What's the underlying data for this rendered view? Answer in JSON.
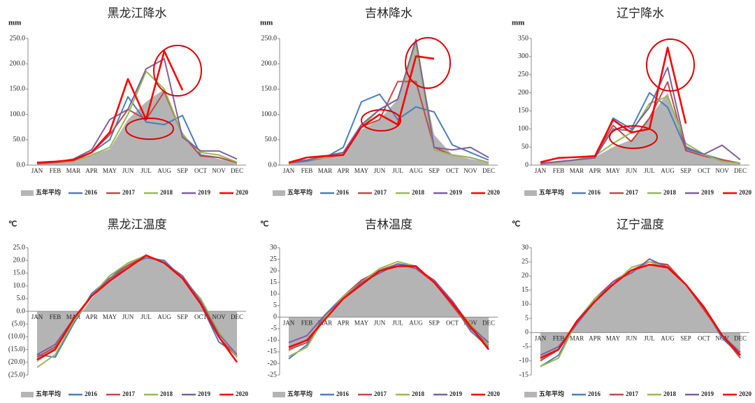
{
  "chart_data": [
    {
      "type": "line",
      "title": "黑龙江降水",
      "y_label": "mm",
      "categories": [
        "JAN",
        "FEB",
        "MAR",
        "APR",
        "MAY",
        "JUN",
        "JUL",
        "AUG",
        "SEP",
        "OCT",
        "NOV",
        "DEC"
      ],
      "ylim": [
        0,
        250
      ],
      "yticks": [
        {
          "value": 0,
          "label": "0.0"
        },
        {
          "value": 50,
          "label": "50.0"
        },
        {
          "value": 100,
          "label": "100.0"
        },
        {
          "value": 150,
          "label": "150.0"
        },
        {
          "value": 200,
          "label": "200.0"
        },
        {
          "value": 250,
          "label": "250.0"
        }
      ],
      "series": [
        {
          "name": "五年平均",
          "type": "area",
          "color": "#b4b4b4",
          "values": [
            4,
            6,
            10,
            20,
            32,
            90,
            125,
            150,
            65,
            20,
            12,
            5
          ]
        },
        {
          "name": "2016",
          "color": "#4a7ebb",
          "values": [
            4,
            6,
            10,
            25,
            50,
            135,
            85,
            80,
            98,
            20,
            15,
            5
          ]
        },
        {
          "name": "2017",
          "color": "#be4b48",
          "values": [
            3,
            5,
            8,
            25,
            60,
            110,
            90,
            145,
            60,
            18,
            15,
            5
          ]
        },
        {
          "name": "2018",
          "color": "#98b954",
          "values": [
            5,
            6,
            8,
            20,
            35,
            100,
            185,
            150,
            60,
            25,
            20,
            6
          ]
        },
        {
          "name": "2019",
          "color": "#7d60a0",
          "values": [
            4,
            6,
            12,
            30,
            90,
            110,
            190,
            210,
            55,
            28,
            28,
            12
          ]
        },
        {
          "name": "2020",
          "color": "#ff0000",
          "values": [
            5,
            7,
            10,
            25,
            65,
            170,
            90,
            225,
            148,
            null,
            null,
            null
          ]
        }
      ]
    },
    {
      "type": "line",
      "title": "吉林降水",
      "y_label": "mm",
      "categories": [
        "JAN",
        "FEB",
        "MAR",
        "APR",
        "MAY",
        "JUN",
        "JUL",
        "AUG",
        "SEP",
        "OCT",
        "NOV",
        "DEC"
      ],
      "ylim": [
        0,
        250
      ],
      "yticks": [
        {
          "value": 0,
          "label": "0.0"
        },
        {
          "value": 50,
          "label": "50.0"
        },
        {
          "value": 100,
          "label": "100.0"
        },
        {
          "value": 150,
          "label": "150.0"
        },
        {
          "value": 200,
          "label": "200.0"
        },
        {
          "value": 250,
          "label": "250.0"
        }
      ],
      "series": [
        {
          "name": "五年平均",
          "type": "area",
          "color": "#b4b4b4",
          "values": [
            5,
            8,
            15,
            25,
            70,
            90,
            130,
            235,
            60,
            20,
            12,
            5
          ]
        },
        {
          "name": "2016",
          "color": "#4a7ebb",
          "values": [
            4,
            8,
            15,
            35,
            125,
            140,
            90,
            115,
            105,
            40,
            25,
            10
          ]
        },
        {
          "name": "2017",
          "color": "#be4b48",
          "values": [
            4,
            10,
            15,
            20,
            75,
            90,
            165,
            165,
            35,
            20,
            15,
            5
          ]
        },
        {
          "name": "2018",
          "color": "#98b954",
          "values": [
            5,
            10,
            15,
            25,
            75,
            110,
            130,
            240,
            30,
            20,
            15,
            5
          ]
        },
        {
          "name": "2019",
          "color": "#7d60a0",
          "values": [
            5,
            10,
            18,
            25,
            80,
            110,
            130,
            248,
            35,
            30,
            35,
            15
          ]
        },
        {
          "name": "2020",
          "color": "#ff0000",
          "values": [
            5,
            15,
            18,
            20,
            75,
            100,
            80,
            215,
            210,
            null,
            null,
            null
          ]
        }
      ]
    },
    {
      "type": "line",
      "title": "辽宁降水",
      "y_label": "mm",
      "categories": [
        "JAN",
        "FEB",
        "MAR",
        "APR",
        "MAY",
        "JUN",
        "JUL",
        "AUG",
        "SEP",
        "OCT",
        "NOV",
        "DEC"
      ],
      "ylim": [
        0,
        350
      ],
      "yticks": [
        0,
        50,
        100,
        150,
        200,
        250,
        300,
        350
      ],
      "series": [
        {
          "name": "五年平均",
          "type": "area",
          "color": "#b4b4b4",
          "values": [
            5,
            8,
            15,
            22,
            50,
            70,
            130,
            200,
            55,
            25,
            15,
            5
          ]
        },
        {
          "name": "2016",
          "color": "#4a7ebb",
          "values": [
            4,
            8,
            15,
            20,
            130,
            100,
            200,
            160,
            45,
            30,
            15,
            5
          ]
        },
        {
          "name": "2017",
          "color": "#be4b48",
          "values": [
            3,
            8,
            15,
            25,
            110,
            65,
            130,
            230,
            40,
            25,
            15,
            5
          ]
        },
        {
          "name": "2018",
          "color": "#98b954",
          "values": [
            4,
            8,
            15,
            25,
            60,
            90,
            170,
            190,
            60,
            30,
            10,
            5
          ]
        },
        {
          "name": "2019",
          "color": "#7d60a0",
          "values": [
            5,
            10,
            15,
            20,
            100,
            95,
            160,
            270,
            50,
            30,
            55,
            15
          ]
        },
        {
          "name": "2020",
          "color": "#ff0000",
          "values": [
            8,
            20,
            22,
            25,
            125,
            90,
            100,
            325,
            115,
            null,
            null,
            null
          ]
        }
      ]
    },
    {
      "type": "line",
      "title": "黑龙江温度",
      "y_label": "℃",
      "negative_tick_color": "#e00000",
      "categories": [
        "JAN",
        "FEB",
        "MAR",
        "APR",
        "MAY",
        "JUN",
        "JUL",
        "AUG",
        "SEP",
        "OCT",
        "NOV",
        "DEC"
      ],
      "ylim": [
        -25,
        25
      ],
      "yticks": [
        {
          "value": 25,
          "label": "25.0"
        },
        {
          "value": 20,
          "label": "20.0"
        },
        {
          "value": 15,
          "label": "15.0"
        },
        {
          "value": 10,
          "label": "10.0"
        },
        {
          "value": 5,
          "label": "5.0"
        },
        {
          "value": 0,
          "label": "0.0"
        },
        {
          "value": -5,
          "label": "(5.0)"
        },
        {
          "value": -10,
          "label": "(10.0)"
        },
        {
          "value": -15,
          "label": "(15.0)"
        },
        {
          "value": -20,
          "label": "(20.0)"
        },
        {
          "value": -25,
          "label": "(25.0)"
        }
      ],
      "series": [
        {
          "name": "五年平均",
          "type": "area",
          "color": "#b4b4b4",
          "values": [
            -20,
            -15,
            -5,
            5,
            13,
            19,
            22,
            20,
            13,
            4,
            -8,
            -18
          ]
        },
        {
          "name": "2016",
          "color": "#4a7ebb",
          "values": [
            -17,
            -18,
            -5,
            7,
            13,
            18,
            21,
            20,
            13,
            3,
            -12,
            -17
          ]
        },
        {
          "name": "2017",
          "color": "#be4b48",
          "values": [
            -18,
            -14,
            -4,
            6,
            14,
            18,
            22,
            19,
            13,
            3,
            -10,
            -18
          ]
        },
        {
          "name": "2018",
          "color": "#98b954",
          "values": [
            -22,
            -17,
            -4,
            6,
            14,
            19,
            22,
            19,
            13,
            5,
            -8,
            -18
          ]
        },
        {
          "name": "2019",
          "color": "#7d60a0",
          "values": [
            -17,
            -13,
            -3,
            6,
            13,
            17,
            22,
            19,
            14,
            4,
            -9,
            -17
          ]
        },
        {
          "name": "2020",
          "color": "#ff0000",
          "values": [
            -19,
            -15,
            -3,
            6,
            12,
            17,
            22,
            19,
            13,
            3,
            -10,
            -20
          ]
        }
      ]
    },
    {
      "type": "line",
      "title": "吉林温度",
      "y_label": "℃",
      "categories": [
        "JAN",
        "FEB",
        "MAR",
        "APR",
        "MAY",
        "JUN",
        "JUL",
        "AUG",
        "SEP",
        "OCT",
        "NOV",
        "DEC"
      ],
      "ylim": [
        -25,
        30
      ],
      "yticks": [
        30,
        25,
        20,
        15,
        10,
        5,
        0,
        -5,
        -10,
        -15,
        -20,
        -25
      ],
      "series": [
        {
          "name": "五年平均",
          "type": "area",
          "color": "#b4b4b4",
          "values": [
            -15,
            -10,
            0,
            9,
            16,
            21,
            23,
            22,
            15,
            6,
            -4,
            -13
          ]
        },
        {
          "name": "2016",
          "color": "#4a7ebb",
          "values": [
            -18,
            -12,
            1,
            9,
            15,
            20,
            23,
            22,
            15,
            6,
            -6,
            -13
          ]
        },
        {
          "name": "2017",
          "color": "#be4b48",
          "values": [
            -14,
            -11,
            0,
            9,
            16,
            20,
            23,
            21,
            15,
            5,
            -5,
            -12
          ]
        },
        {
          "name": "2018",
          "color": "#98b954",
          "values": [
            -17,
            -13,
            0,
            9,
            15,
            21,
            24,
            22,
            15,
            6,
            -3,
            -12
          ]
        },
        {
          "name": "2019",
          "color": "#7d60a0",
          "values": [
            -11,
            -8,
            1,
            8,
            15,
            19,
            23,
            21,
            16,
            7,
            -4,
            -11
          ]
        },
        {
          "name": "2020",
          "color": "#ff0000",
          "values": [
            -13,
            -10,
            -1,
            8,
            14,
            20,
            22,
            22,
            15,
            6,
            -4,
            -14
          ]
        }
      ]
    },
    {
      "type": "line",
      "title": "辽宁温度",
      "y_label": "℃",
      "categories": [
        "JAN",
        "FEB",
        "MAR",
        "APR",
        "MAY",
        "JUN",
        "JUL",
        "AUG",
        "SEP",
        "OCT",
        "NOV",
        "DEC"
      ],
      "ylim": [
        -15,
        30
      ],
      "yticks": [
        30,
        25,
        20,
        15,
        10,
        5,
        0,
        -5,
        -10,
        -15
      ],
      "series": [
        {
          "name": "五年平均",
          "type": "area",
          "color": "#b4b4b4",
          "values": [
            -10,
            -6,
            3,
            11,
            17,
            22,
            24,
            24,
            17,
            9,
            -1,
            -8
          ]
        },
        {
          "name": "2016",
          "color": "#4a7ebb",
          "values": [
            -12,
            -8,
            4,
            12,
            18,
            22,
            24,
            24,
            17,
            9,
            -2,
            -8
          ]
        },
        {
          "name": "2017",
          "color": "#be4b48",
          "values": [
            -10,
            -6,
            3,
            12,
            18,
            22,
            25,
            24,
            17,
            8,
            -1,
            -9
          ]
        },
        {
          "name": "2018",
          "color": "#98b954",
          "values": [
            -12,
            -9,
            4,
            12,
            17,
            23,
            25,
            23,
            17,
            9,
            -1,
            -8
          ]
        },
        {
          "name": "2019",
          "color": "#7d60a0",
          "values": [
            -8,
            -5,
            3,
            11,
            18,
            21,
            26,
            23,
            17,
            9,
            -1,
            -7
          ]
        },
        {
          "name": "2020",
          "color": "#ff0000",
          "values": [
            -9,
            -6,
            4,
            11,
            17,
            22,
            24,
            23,
            17,
            9,
            -1,
            -8
          ]
        }
      ]
    }
  ]
}
